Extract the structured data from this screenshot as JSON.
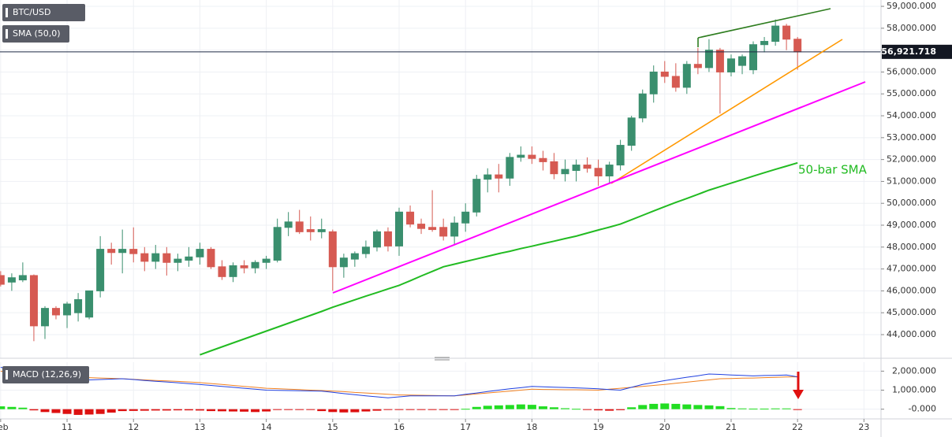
{
  "chart_data": [
    {
      "type": "candlestick",
      "title": "BTC/USD",
      "x": [
        10,
        10.167,
        10.333,
        10.5,
        10.667,
        10.833,
        11,
        11.167,
        11.333,
        11.5,
        11.667,
        11.833,
        12,
        12.167,
        12.333,
        12.5,
        12.667,
        12.833,
        13,
        13.167,
        13.333,
        13.5,
        13.667,
        13.833,
        14,
        14.167,
        14.333,
        14.5,
        14.667,
        14.833,
        15,
        15.167,
        15.333,
        15.5,
        15.667,
        15.833,
        16,
        16.167,
        16.333,
        16.5,
        16.667,
        16.833,
        17,
        17.167,
        17.333,
        17.5,
        17.667,
        17.833,
        18,
        18.167,
        18.333,
        18.5,
        18.667,
        18.833,
        19,
        19.167,
        19.333,
        19.5,
        19.667,
        19.833,
        20,
        20.167,
        20.333,
        20.5,
        20.667,
        20.833,
        21,
        21.167,
        21.333,
        21.5,
        21.667,
        21.833,
        22
      ],
      "open": [
        46700,
        46400,
        46500,
        46700,
        44400,
        45200,
        44900,
        45000,
        44800,
        46000,
        47900,
        47750,
        47900,
        47700,
        47350,
        47700,
        47300,
        47400,
        47550,
        47900,
        47100,
        46650,
        47150,
        47050,
        47300,
        47400,
        48900,
        49150,
        48800,
        48700,
        48700,
        47100,
        47450,
        47700,
        48000,
        48700,
        48050,
        49600,
        49050,
        48900,
        48900,
        48500,
        49100,
        49600,
        51100,
        51300,
        51150,
        52100,
        52200,
        52050,
        51900,
        51350,
        51500,
        51750,
        51600,
        51250,
        51750,
        52650,
        53900,
        55000,
        56000,
        55800,
        55300,
        56350,
        56200,
        57000,
        56000,
        56300,
        56100,
        57250,
        57400,
        58100,
        57500
      ],
      "high": [
        46900,
        46800,
        47300,
        46750,
        45300,
        45300,
        45500,
        45900,
        46000,
        48500,
        48200,
        48800,
        48900,
        48000,
        48100,
        48000,
        47700,
        48000,
        48200,
        48000,
        47400,
        47300,
        47400,
        47400,
        47600,
        49300,
        49600,
        49700,
        49400,
        49300,
        48800,
        47700,
        47800,
        48300,
        48800,
        48900,
        49800,
        49900,
        49300,
        50600,
        49300,
        49400,
        50000,
        51300,
        51600,
        51800,
        52300,
        52600,
        52600,
        52400,
        52300,
        52000,
        52000,
        52100,
        52000,
        51900,
        52900,
        54000,
        55200,
        56300,
        56500,
        56400,
        56500,
        57100,
        57500,
        57100,
        56800,
        56800,
        57400,
        57600,
        58400,
        58200,
        57600
      ],
      "low": [
        46200,
        46000,
        46400,
        43700,
        43800,
        44700,
        44300,
        44600,
        44700,
        45700,
        47200,
        46800,
        47300,
        46900,
        47000,
        46700,
        46900,
        47100,
        47200,
        47000,
        46500,
        46400,
        46800,
        46800,
        47000,
        47300,
        48500,
        48600,
        48300,
        48400,
        46000,
        46600,
        47100,
        47500,
        47800,
        47800,
        47600,
        48900,
        48600,
        48700,
        48300,
        48100,
        48700,
        49400,
        50500,
        50500,
        50800,
        51900,
        51800,
        51500,
        51100,
        51000,
        51000,
        51400,
        50800,
        50900,
        51500,
        52400,
        53700,
        54600,
        55500,
        55100,
        55000,
        55900,
        56000,
        54100,
        55800,
        55900,
        55900,
        56900,
        57200,
        57000,
        56100
      ],
      "close": [
        46300,
        46600,
        46700,
        44400,
        45200,
        44900,
        45400,
        45600,
        46000,
        47900,
        47750,
        47900,
        47700,
        47350,
        47700,
        47300,
        47450,
        47550,
        47900,
        47100,
        46650,
        47150,
        47050,
        47300,
        47450,
        48900,
        49150,
        48700,
        48700,
        48800,
        47100,
        47500,
        47700,
        48000,
        48700,
        48050,
        49600,
        49050,
        48850,
        48800,
        48500,
        49100,
        49600,
        51100,
        51300,
        51150,
        52100,
        52200,
        52050,
        51900,
        51350,
        51550,
        51750,
        51600,
        51250,
        51750,
        52650,
        53900,
        55000,
        56000,
        55800,
        55300,
        56350,
        56200,
        57000,
        56000,
        56600,
        56700,
        57250,
        57400,
        58100,
        57500,
        56921.718
      ],
      "up_color": "#3a8f6e",
      "down_color": "#d65a52",
      "price_label": "56,921.718",
      "series": [
        {
          "name": "SMA (50,0)",
          "color": "#22bb22",
          "values": [
            null,
            null,
            null,
            null,
            null,
            null,
            null,
            null,
            null,
            null,
            null,
            null,
            null,
            null,
            null,
            null,
            null,
            null,
            43080,
            43260,
            43440,
            43620,
            43800,
            43980,
            44160,
            44340,
            44520,
            44700,
            44880,
            45060,
            45250,
            45420,
            45590,
            45760,
            45920,
            46090,
            46250,
            46460,
            46680,
            46890,
            47100,
            47220,
            47340,
            47460,
            47580,
            47700,
            47810,
            47930,
            48040,
            48160,
            48270,
            48390,
            48500,
            48640,
            48780,
            48910,
            49050,
            49250,
            49450,
            49650,
            49850,
            50040,
            50220,
            50410,
            50600,
            50760,
            50920,
            51080,
            51240,
            51400,
            51550,
            51700,
            51850
          ]
        }
      ],
      "annotation": "50-bar SMA",
      "xlim": [
        9.99,
        23.257
      ],
      "xticks": [
        {
          "value": 10,
          "label": "Feb"
        },
        11,
        12,
        13,
        14,
        15,
        16,
        17,
        18,
        19,
        20,
        21,
        22,
        23
      ],
      "ylim": [
        42920,
        59290
      ],
      "yticks": [
        {
          "value": 44000,
          "label": "44,000.000"
        },
        {
          "value": 45000,
          "label": "45,000.000"
        },
        {
          "value": 46000,
          "label": "46,000.000"
        },
        {
          "value": 47000,
          "label": "47,000.000"
        },
        {
          "value": 48000,
          "label": "48,000.000"
        },
        {
          "value": 49000,
          "label": "49,000.000"
        },
        {
          "value": 50000,
          "label": "50,000.000"
        },
        {
          "value": 51000,
          "label": "51,000.000"
        },
        {
          "value": 52000,
          "label": "52,000.000"
        },
        {
          "value": 53000,
          "label": "53,000.000"
        },
        {
          "value": 54000,
          "label": "54,000.000"
        },
        {
          "value": 55000,
          "label": "55,000.000"
        },
        {
          "value": 56000,
          "label": "56,000.000"
        },
        {
          "value": 57000,
          "label": "57,000.000"
        },
        {
          "value": 58000,
          "label": "58,000.000"
        },
        {
          "value": 59000,
          "label": "59,000.000"
        }
      ],
      "grid": true
    },
    {
      "type": "macd",
      "title": "MACD (12,26,9)",
      "macd": [
        2200,
        2080,
        1970,
        1850,
        1730,
        1620,
        1500,
        1520,
        1540,
        1560,
        1580,
        1600,
        1560,
        1510,
        1470,
        1430,
        1390,
        1340,
        1300,
        1250,
        1200,
        1150,
        1100,
        1050,
        1000,
        990,
        980,
        970,
        960,
        950,
        890,
        820,
        760,
        700,
        650,
        600,
        650,
        700,
        700,
        700,
        700,
        700,
        780,
        850,
        930,
        1000,
        1070,
        1130,
        1200,
        1180,
        1160,
        1140,
        1120,
        1100,
        1070,
        1030,
        1000,
        1150,
        1300,
        1400,
        1500,
        1590,
        1680,
        1760,
        1850,
        1830,
        1800,
        1780,
        1750,
        1770,
        1780,
        1800,
        1700
      ],
      "signal": [
        2000,
        1950,
        1900,
        1850,
        1800,
        1750,
        1700,
        1680,
        1660,
        1640,
        1620,
        1600,
        1570,
        1540,
        1510,
        1490,
        1460,
        1430,
        1400,
        1350,
        1300,
        1250,
        1200,
        1150,
        1100,
        1080,
        1050,
        1030,
        1000,
        980,
        950,
        920,
        880,
        850,
        820,
        780,
        750,
        740,
        730,
        720,
        710,
        700,
        750,
        800,
        850,
        900,
        950,
        1000,
        1050,
        1040,
        1030,
        1020,
        1020,
        1010,
        1000,
        1050,
        1100,
        1150,
        1200,
        1250,
        1300,
        1360,
        1420,
        1480,
        1540,
        1600,
        1610,
        1630,
        1640,
        1660,
        1670,
        1690,
        1700
      ],
      "histogram": [
        150,
        120,
        80,
        -60,
        -150,
        -200,
        -250,
        -300,
        -280,
        -250,
        -180,
        -100,
        -90,
        -80,
        -70,
        -70,
        -60,
        -60,
        -70,
        -100,
        -110,
        -120,
        -130,
        -150,
        -120,
        -40,
        -20,
        -10,
        -30,
        -100,
        -150,
        -170,
        -160,
        -120,
        -80,
        -40,
        -20,
        -10,
        -10,
        -20,
        -20,
        -30,
        20,
        120,
        180,
        200,
        220,
        250,
        230,
        150,
        100,
        50,
        20,
        -20,
        -60,
        -80,
        -50,
        100,
        220,
        280,
        300,
        280,
        250,
        220,
        200,
        160,
        60,
        40,
        30,
        30,
        40,
        40,
        -40
      ],
      "macd_color": "#2040e0",
      "signal_color": "#f08020",
      "up_color": "#22dd22",
      "down_color": "#dd1111",
      "ylim": [
        -510,
        2470
      ],
      "yticks": [
        {
          "value": 0,
          "label": "-0.000"
        },
        {
          "value": 1000,
          "label": "1,000.000"
        },
        {
          "value": 2000,
          "label": "2,000.000"
        }
      ]
    }
  ]
}
